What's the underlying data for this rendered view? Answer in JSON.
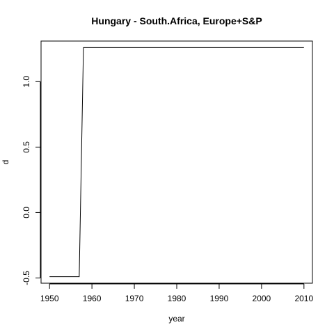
{
  "chart_data": {
    "type": "line",
    "title": "Hungary - South.Africa, Europe+S&P",
    "xlabel": "year",
    "ylabel": "d",
    "xlim": [
      1948,
      2012
    ],
    "ylim": [
      -0.54,
      1.31
    ],
    "xticks": [
      1950,
      1960,
      1970,
      1980,
      1990,
      2000,
      2010
    ],
    "yticks": [
      -0.5,
      0.0,
      0.5,
      1.0
    ],
    "ytick_labels": [
      "-0.5",
      "0.0",
      "0.5",
      "1.0"
    ],
    "series": [
      {
        "name": "d",
        "color": "#000000",
        "x": [
          1950,
          1957,
          1958,
          2010
        ],
        "y": [
          -0.49,
          -0.49,
          1.26,
          1.26
        ]
      }
    ]
  }
}
